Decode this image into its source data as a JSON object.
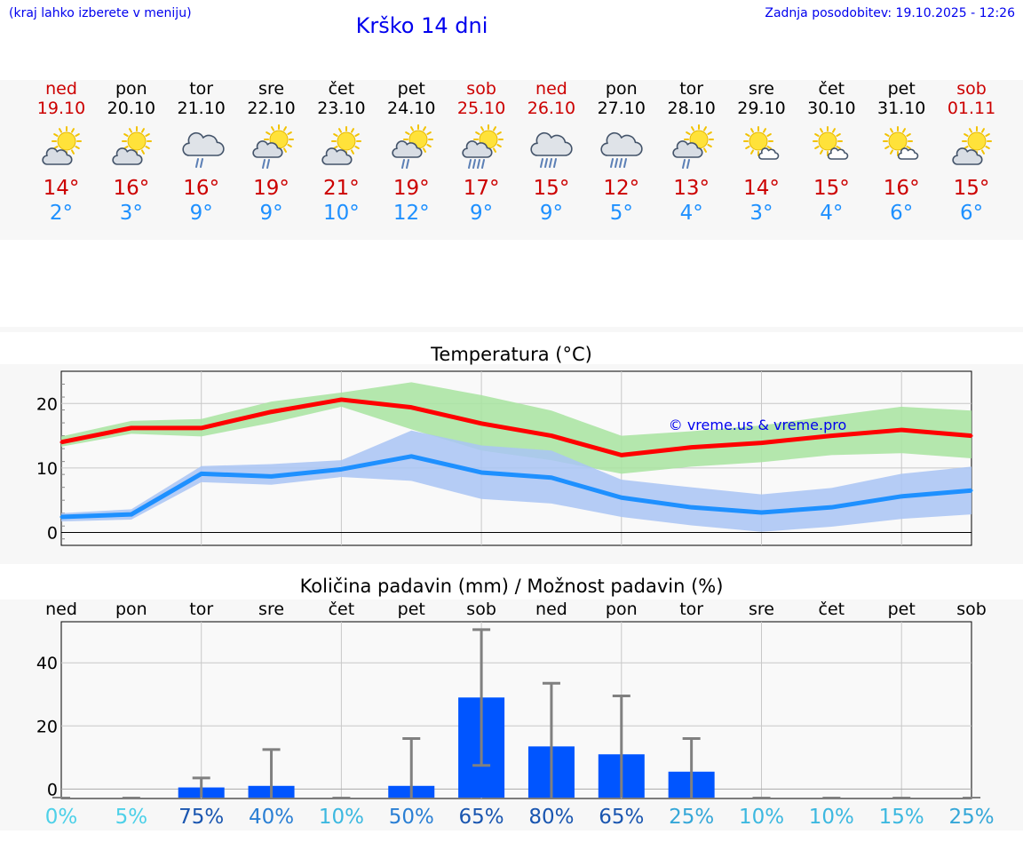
{
  "header": {
    "menu_hint": "(kraj lahko izberete v meniju)",
    "title": "Krško 14 dni",
    "last_update": "Zadnja posodobitev: 19.10.2025 - 12:26"
  },
  "colors": {
    "link": "#0000ee",
    "weekend": "#cc0000",
    "temp_max": "#ff0000",
    "temp_min": "#1e90ff",
    "temp_max_band": "#a8e4a0",
    "temp_min_band": "#a9c4f5",
    "precip_bar": "#0055ff",
    "error_bar": "#808080"
  },
  "days": [
    {
      "name": "ned",
      "date": "19.10",
      "weekend": true,
      "icon": "partly-cloudy-sun-icon",
      "max": "14°",
      "min": "2°"
    },
    {
      "name": "pon",
      "date": "20.10",
      "weekend": false,
      "icon": "partly-cloudy-sun-icon",
      "max": "16°",
      "min": "3°"
    },
    {
      "name": "tor",
      "date": "21.10",
      "weekend": false,
      "icon": "cloud-rain-icon",
      "max": "16°",
      "min": "9°"
    },
    {
      "name": "sre",
      "date": "22.10",
      "weekend": false,
      "icon": "sun-cloud-rain-icon",
      "max": "19°",
      "min": "9°"
    },
    {
      "name": "čet",
      "date": "23.10",
      "weekend": false,
      "icon": "partly-cloudy-sun-icon",
      "max": "21°",
      "min": "10°"
    },
    {
      "name": "pet",
      "date": "24.10",
      "weekend": false,
      "icon": "sun-cloud-rain-icon",
      "max": "19°",
      "min": "12°"
    },
    {
      "name": "sob",
      "date": "25.10",
      "weekend": true,
      "icon": "sun-cloud-heavy-rain-icon",
      "max": "17°",
      "min": "9°"
    },
    {
      "name": "ned",
      "date": "26.10",
      "weekend": true,
      "icon": "cloud-heavy-rain-icon",
      "max": "15°",
      "min": "9°"
    },
    {
      "name": "pon",
      "date": "27.10",
      "weekend": false,
      "icon": "cloud-heavy-rain-icon",
      "max": "12°",
      "min": "5°"
    },
    {
      "name": "tor",
      "date": "28.10",
      "weekend": false,
      "icon": "sun-cloud-rain-icon",
      "max": "13°",
      "min": "4°"
    },
    {
      "name": "sre",
      "date": "29.10",
      "weekend": false,
      "icon": "sun-small-cloud-icon",
      "max": "14°",
      "min": "3°"
    },
    {
      "name": "čet",
      "date": "30.10",
      "weekend": false,
      "icon": "sun-small-cloud-icon",
      "max": "15°",
      "min": "4°"
    },
    {
      "name": "pet",
      "date": "31.10",
      "weekend": false,
      "icon": "sun-small-cloud-icon",
      "max": "16°",
      "min": "6°"
    },
    {
      "name": "sob",
      "date": "01.11",
      "weekend": true,
      "icon": "partly-cloudy-sun-icon",
      "max": "15°",
      "min": "6°"
    }
  ],
  "chart_data": [
    {
      "type": "line",
      "title": "Temperatura (°C)",
      "watermark": "© vreme.us & vreme.pro",
      "x_count": 14,
      "ylim": [
        -2,
        25
      ],
      "yticks": [
        0,
        10,
        20
      ],
      "grid": true,
      "series": [
        {
          "values": [
            14.0,
            16.2,
            16.2,
            18.7,
            20.6,
            19.4,
            16.9,
            15.0,
            12.0,
            13.2,
            13.9,
            15.0,
            15.9,
            15.0
          ],
          "band_low": [
            13.3,
            15.3,
            14.9,
            17.0,
            19.5,
            16.0,
            12.7,
            11.2,
            9.1,
            10.2,
            10.9,
            12.0,
            12.3,
            11.5
          ],
          "band_high": [
            14.9,
            17.3,
            17.6,
            20.3,
            21.7,
            23.3,
            21.3,
            18.9,
            15.0,
            15.7,
            16.6,
            18.1,
            19.5,
            18.9
          ]
        },
        {
          "values": [
            2.4,
            2.8,
            9.1,
            8.7,
            9.8,
            11.8,
            9.3,
            8.5,
            5.4,
            3.9,
            3.1,
            3.9,
            5.6,
            6.5
          ],
          "band_low": [
            1.7,
            2.0,
            7.8,
            7.4,
            8.6,
            8.0,
            5.2,
            4.5,
            2.4,
            1.1,
            0.1,
            0.9,
            2.1,
            2.8
          ],
          "band_high": [
            3.0,
            3.6,
            10.3,
            10.6,
            11.2,
            15.8,
            13.5,
            12.7,
            8.2,
            7.0,
            5.9,
            6.9,
            9.1,
            10.2
          ]
        }
      ]
    },
    {
      "type": "bar",
      "title": "Količina padavin (mm) / Možnost padavin (%)",
      "categories": [
        "ned",
        "pon",
        "tor",
        "sre",
        "čet",
        "pet",
        "sob",
        "ned",
        "pon",
        "tor",
        "sre",
        "čet",
        "pet",
        "sob"
      ],
      "ylim": [
        -3,
        53
      ],
      "yticks": [
        0,
        20,
        40
      ],
      "grid": true,
      "values": [
        0,
        0,
        0.5,
        1.0,
        0,
        1.0,
        29,
        13.5,
        11,
        5.5,
        0,
        0,
        0,
        0
      ],
      "error_high": [
        0,
        0,
        3.5,
        12.5,
        0,
        16.0,
        50.5,
        33.5,
        29.5,
        16.0,
        0,
        0,
        0,
        0
      ],
      "error_low": [
        0,
        0,
        0,
        0,
        0,
        0,
        7.5,
        0,
        0,
        0,
        0,
        0,
        0,
        0
      ],
      "probability": [
        "0%",
        "5%",
        "75%",
        "40%",
        "10%",
        "50%",
        "65%",
        "80%",
        "65%",
        "25%",
        "10%",
        "10%",
        "15%",
        "25%"
      ],
      "probability_values": [
        0,
        5,
        75,
        40,
        10,
        50,
        65,
        80,
        65,
        25,
        10,
        10,
        15,
        25
      ]
    }
  ]
}
